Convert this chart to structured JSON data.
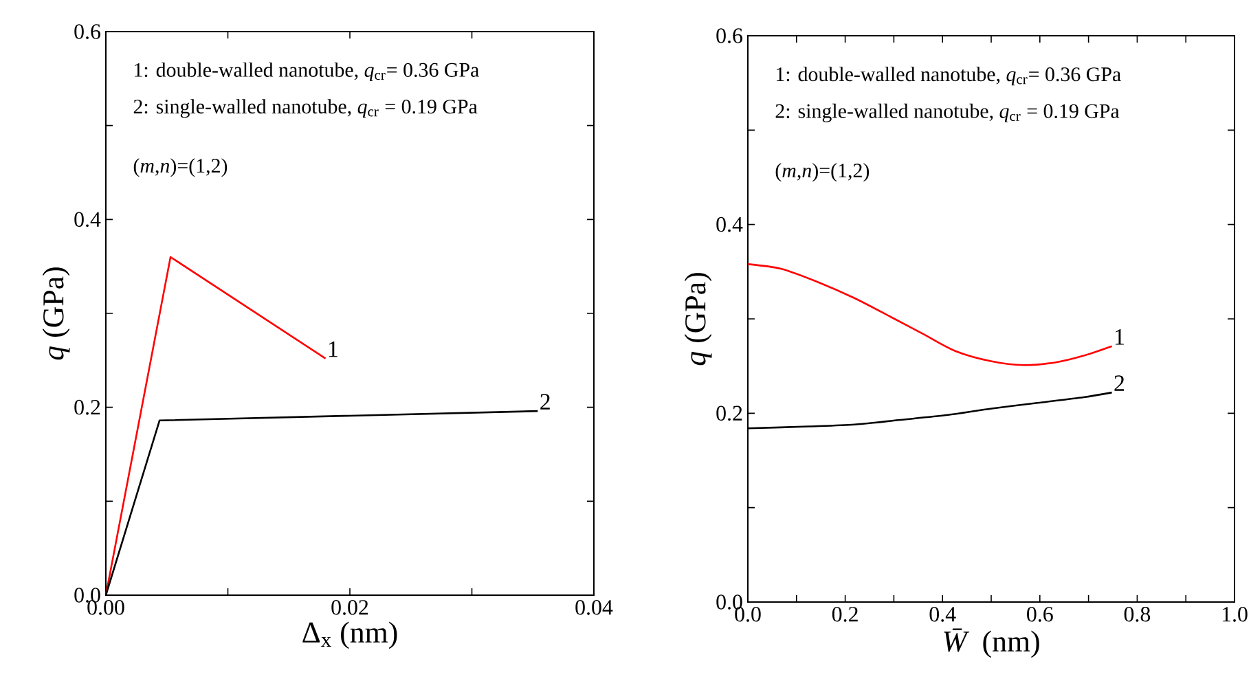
{
  "chart_data": [
    {
      "type": "line",
      "xlabel": "Δ$_{x}$ (nm)",
      "ylabel": "*q* (GPa)",
      "series": [
        {
          "name": "1",
          "color": "#ff0000",
          "x": [
            0,
            0.0053,
            0.018
          ],
          "values": [
            0,
            0.36,
            0.252
          ]
        },
        {
          "name": "2",
          "color": "#000000",
          "x": [
            0,
            0.0044,
            0.0354
          ],
          "values": [
            0,
            0.186,
            0.196
          ]
        }
      ],
      "xlim": [
        0,
        0.04
      ],
      "ylim": [
        0,
        0.6
      ],
      "xticks": [
        {
          "value": 0,
          "label": "0.00"
        },
        {
          "value": 0.01,
          "label": null
        },
        {
          "value": 0.02,
          "label": "0.02"
        },
        {
          "value": 0.03,
          "label": null
        },
        {
          "value": 0.04,
          "label": "0.04"
        }
      ],
      "yticks": [
        {
          "value": 0,
          "label": "0.0"
        },
        {
          "value": 0.1,
          "label": null
        },
        0.2,
        {
          "value": 0.3,
          "label": null
        },
        0.4,
        {
          "value": 0.5,
          "label": null
        },
        0.6
      ],
      "annotations": [
        "1: double-walled nanotube, *q*$_{cr}$= 0.36 GPa",
        "2: single-walled nanotube, *q*$_{cr}$ = 0.19 GPa",
        "(*m*,*n*)=(1,2)"
      ]
    },
    {
      "type": "line",
      "xlabel": "*W̄* (nm)",
      "ylabel": "*q* (GPa)",
      "series": [
        {
          "name": "1",
          "color": "#ff0000",
          "x": [
            0,
            0.069,
            0.144,
            0.219,
            0.294,
            0.36,
            0.426,
            0.501,
            0.567,
            0.633,
            0.69,
            0.748
          ],
          "values": [
            0.358,
            0.353,
            0.339,
            0.322,
            0.302,
            0.284,
            0.266,
            0.255,
            0.251,
            0.254,
            0.261,
            0.271
          ]
        },
        {
          "name": "2",
          "color": "#000000",
          "x": [
            0,
            0.125,
            0.219,
            0.313,
            0.407,
            0.501,
            0.595,
            0.69,
            0.748
          ],
          "values": [
            0.184,
            0.186,
            0.188,
            0.193,
            0.198,
            0.205,
            0.211,
            0.217,
            0.222
          ]
        }
      ],
      "xlim": [
        0,
        1.0
      ],
      "ylim": [
        0,
        0.6
      ],
      "xticks": [
        {
          "value": 0,
          "label": "0.0"
        },
        {
          "value": 0.1,
          "label": null
        },
        0.2,
        {
          "value": 0.3,
          "label": null
        },
        0.4,
        {
          "value": 0.5,
          "label": null
        },
        0.6,
        {
          "value": 0.7,
          "label": null
        },
        0.8,
        {
          "value": 0.9,
          "label": null
        },
        {
          "value": 1.0,
          "label": "1.0"
        }
      ],
      "yticks": [
        {
          "value": 0,
          "label": "0.0"
        },
        {
          "value": 0.1,
          "label": null
        },
        0.2,
        {
          "value": 0.3,
          "label": null
        },
        0.4,
        {
          "value": 0.5,
          "label": null
        },
        0.6
      ],
      "annotations": [
        "1: double-walled nanotube, *q*$_{cr}$= 0.36 GPa",
        "2: single-walled nanotube, *q*$_{cr}$ = 0.19 GPa",
        "(*m*,*n*)=(1,2)"
      ]
    }
  ]
}
